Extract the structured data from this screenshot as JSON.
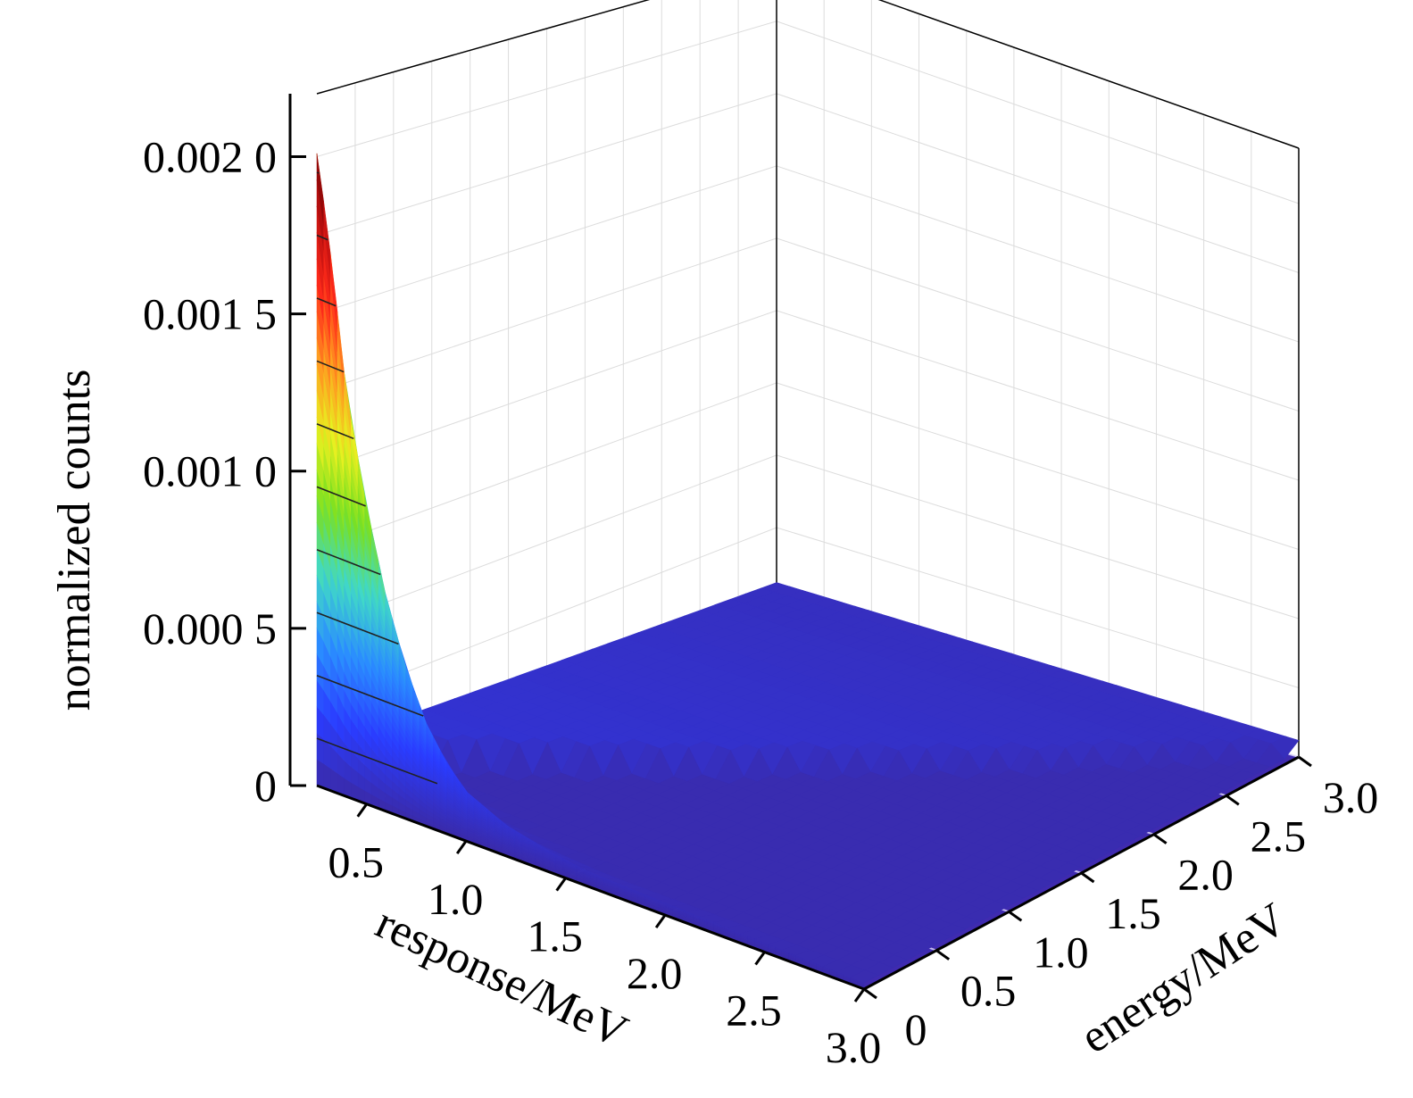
{
  "chart_data": {
    "type": "surface3d",
    "z_label": "normalized counts",
    "x_label": "response/MeV",
    "y_label": "energy/MeV",
    "z_ticks": [
      "0",
      "0.000 5",
      "0.001 0",
      "0.001 5",
      "0.002 0"
    ],
    "z_tick_values": [
      0,
      0.0005,
      0.001,
      0.0015,
      0.002
    ],
    "x_ticks": [
      "0.5",
      "1.0",
      "1.5",
      "2.0",
      "2.5",
      "3.0"
    ],
    "x_tick_values": [
      0.5,
      1.0,
      1.5,
      2.0,
      2.5,
      3.0
    ],
    "y_ticks": [
      "0",
      "0.5",
      "1.0",
      "1.5",
      "2.0",
      "2.5",
      "3.0"
    ],
    "y_tick_values": [
      0,
      0.5,
      1.0,
      1.5,
      2.0,
      2.5,
      3.0
    ],
    "x_range": [
      0.25,
      3.0
    ],
    "y_range": [
      0,
      3.0
    ],
    "z_range": [
      0,
      0.0022
    ],
    "colormap": [
      "#3a2aa8",
      "#2a3cff",
      "#2a8cff",
      "#40d8c8",
      "#7ae020",
      "#e8f020",
      "#ff9a20",
      "#ff2a1a",
      "#c01010",
      "#6a0000"
    ],
    "peak_profile": {
      "response": [
        0.25,
        0.3,
        0.35,
        0.4,
        0.5,
        0.6,
        0.7,
        0.8,
        0.9,
        1.0,
        1.2,
        1.4,
        1.6,
        2.0,
        2.5,
        3.0
      ],
      "counts": [
        0.00201,
        0.0018,
        0.00155,
        0.00128,
        0.00095,
        0.00068,
        0.00048,
        0.00033,
        0.00023,
        0.00016,
        0.0001,
        7e-05,
        5e-05,
        4e-05,
        3e-05,
        2e-05
      ]
    },
    "plateau_counts": 0.00012,
    "grid": true
  }
}
